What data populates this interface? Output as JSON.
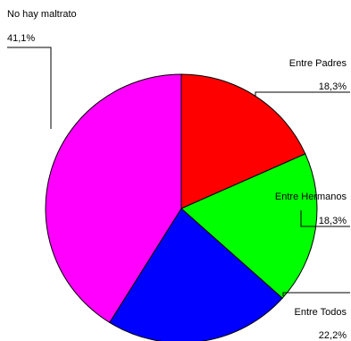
{
  "chart_data": {
    "type": "pie",
    "start_angle_deg": 90,
    "direction": "clockwise",
    "slices": [
      {
        "label": "Entre Padres",
        "value_text": "18,3%",
        "value": 18.3,
        "color": "#ff0000"
      },
      {
        "label": "Entre Hermanos",
        "value_text": "18,3%",
        "value": 18.3,
        "color": "#00ff00"
      },
      {
        "label": "Entre Todos",
        "value_text": "22,2%",
        "value": 22.2,
        "color": "#0000ff"
      },
      {
        "label": "No hay maltrato",
        "value_text": "41,1%",
        "value": 41.1,
        "color": "#ff00ff"
      }
    ],
    "legend": "none",
    "labels_with_leader_lines": true
  }
}
